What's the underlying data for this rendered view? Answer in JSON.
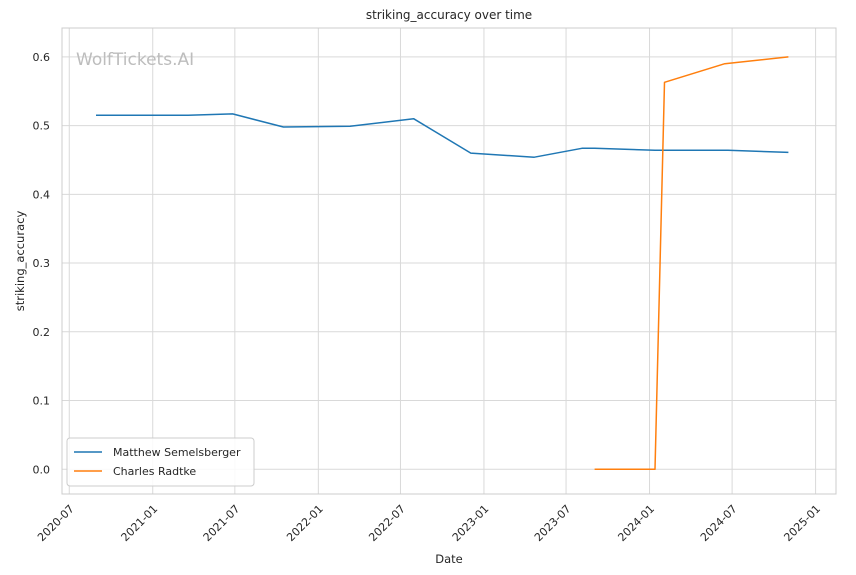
{
  "chart_data": {
    "type": "line",
    "title": "striking_accuracy over time",
    "xlabel": "Date",
    "ylabel": "striking_accuracy",
    "watermark": "WolfTickets.AI",
    "xlim": [
      "2020-06-15",
      "2025-02-15"
    ],
    "ylim": [
      -0.036,
      0.642
    ],
    "x_ticks": [
      "2020-07",
      "2021-01",
      "2021-07",
      "2022-01",
      "2022-07",
      "2023-01",
      "2023-07",
      "2024-01",
      "2024-07",
      "2025-01"
    ],
    "y_ticks": [
      0.0,
      0.1,
      0.2,
      0.3,
      0.4,
      0.5,
      0.6
    ],
    "y_tick_labels": [
      "0.0",
      "0.1",
      "0.2",
      "0.3",
      "0.4",
      "0.5",
      "0.6"
    ],
    "grid": true,
    "legend_position": "lower-left",
    "series": [
      {
        "name": "Matthew Semelsberger",
        "color": "#1f77b4",
        "points": [
          {
            "x": "2020-08-29",
            "y": 0.515
          },
          {
            "x": "2021-03-20",
            "y": 0.515
          },
          {
            "x": "2021-06-26",
            "y": 0.517
          },
          {
            "x": "2021-10-16",
            "y": 0.498
          },
          {
            "x": "2022-03-12",
            "y": 0.499
          },
          {
            "x": "2022-07-30",
            "y": 0.51
          },
          {
            "x": "2022-12-03",
            "y": 0.46
          },
          {
            "x": "2023-04-22",
            "y": 0.454
          },
          {
            "x": "2023-08-05",
            "y": 0.467
          },
          {
            "x": "2023-09-02",
            "y": 0.467
          },
          {
            "x": "2024-01-13",
            "y": 0.464
          },
          {
            "x": "2024-06-22",
            "y": 0.464
          },
          {
            "x": "2024-11-02",
            "y": 0.461
          }
        ]
      },
      {
        "name": "Charles Radtke",
        "color": "#ff7f0e",
        "points": [
          {
            "x": "2023-09-02",
            "y": 0.0
          },
          {
            "x": "2024-01-13",
            "y": 0.0
          },
          {
            "x": "2024-02-03",
            "y": 0.563
          },
          {
            "x": "2024-06-15",
            "y": 0.59
          },
          {
            "x": "2024-11-02",
            "y": 0.6
          }
        ]
      }
    ]
  }
}
